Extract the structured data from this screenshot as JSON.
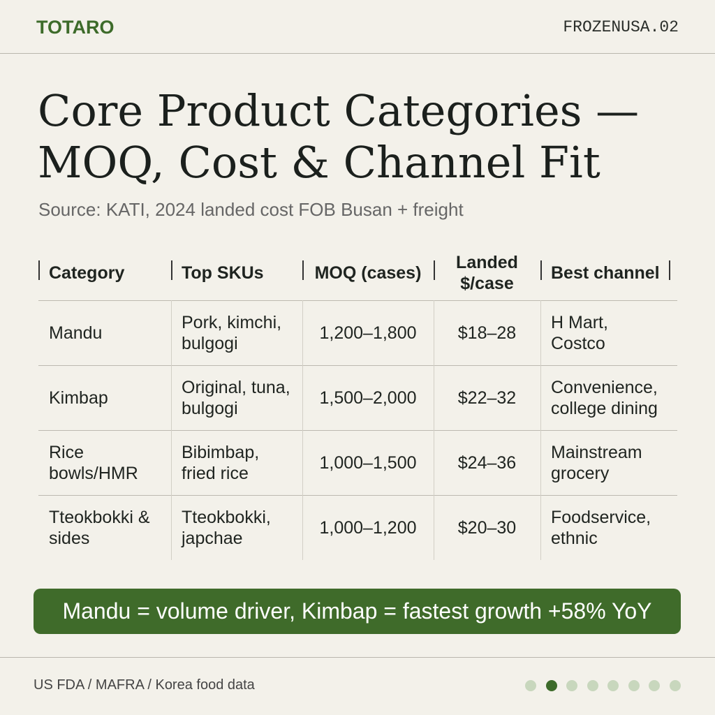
{
  "header": {
    "brand": "TOTARO",
    "code": "FROZENUSA.02"
  },
  "title": "Core Product Categories — MOQ, Cost & Channel Fit",
  "source": "Source: KATI, 2024 landed cost FOB Busan + freight",
  "table": {
    "columns": [
      "Category",
      "Top SKUs",
      "MOQ (cases)",
      "Landed $/case",
      "Best channel"
    ],
    "rows": [
      [
        "Mandu",
        "Pork, kimchi, bulgogi",
        "1,200–1,800",
        "$18–28",
        "H Mart, Costco"
      ],
      [
        "Kimbap",
        "Original, tuna, bulgogi",
        "1,500–2,000",
        "$22–32",
        "Convenience, college dining"
      ],
      [
        "Rice bowls/HMR",
        "Bibimbap, fried rice",
        "1,000–1,500",
        "$24–36",
        "Mainstream grocery"
      ],
      [
        "Tteokbokki & sides",
        "Tteokbokki, japchae",
        "1,000–1,200",
        "$20–30",
        "Foodservice, ethnic"
      ]
    ]
  },
  "callout": "Mandu = volume driver, Kimbap = fastest growth +58% YoY",
  "footer": {
    "source": "US FDA / MAFRA / Korea food data"
  }
}
